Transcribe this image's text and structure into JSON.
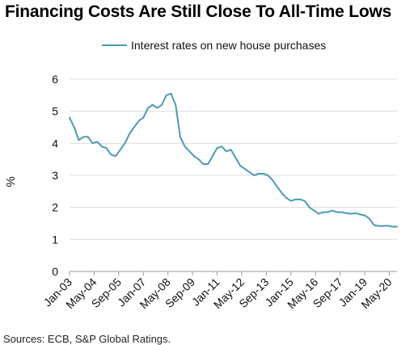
{
  "title": "Financing Costs Are Still Close To All-Time Lows",
  "source": "Sources: ECB, S&P Global Ratings.",
  "chart_data": {
    "type": "line",
    "title": "Financing Costs Are Still Close To All-Time Lows",
    "xlabel": "",
    "ylabel": "%",
    "ylim": [
      0,
      6
    ],
    "yticks": [
      0,
      1,
      2,
      3,
      4,
      5,
      6
    ],
    "xlim": [
      "2003-01",
      "2020-10"
    ],
    "xticks": [
      "Jan-03",
      "May-04",
      "Sep-05",
      "Jan-07",
      "May-08",
      "Sep-09",
      "Jan-11",
      "May-12",
      "Sep-13",
      "Jan-15",
      "May-16",
      "Sep-17",
      "Jan-19",
      "May-20"
    ],
    "grid": true,
    "legend": "top-center",
    "series": [
      {
        "name": "Interest rates on new house purchases",
        "color": "#4a9bb5",
        "points": [
          [
            "2003-01",
            4.8
          ],
          [
            "2003-04",
            4.5
          ],
          [
            "2003-07",
            4.1
          ],
          [
            "2003-10",
            4.2
          ],
          [
            "2004-01",
            4.2
          ],
          [
            "2004-04",
            4.0
          ],
          [
            "2004-07",
            4.05
          ],
          [
            "2004-10",
            3.9
          ],
          [
            "2005-01",
            3.85
          ],
          [
            "2005-04",
            3.65
          ],
          [
            "2005-07",
            3.6
          ],
          [
            "2005-10",
            3.8
          ],
          [
            "2006-01",
            4.0
          ],
          [
            "2006-04",
            4.3
          ],
          [
            "2006-07",
            4.5
          ],
          [
            "2006-10",
            4.7
          ],
          [
            "2007-01",
            4.8
          ],
          [
            "2007-04",
            5.1
          ],
          [
            "2007-07",
            5.2
          ],
          [
            "2007-10",
            5.1
          ],
          [
            "2008-01",
            5.2
          ],
          [
            "2008-04",
            5.5
          ],
          [
            "2008-07",
            5.55
          ],
          [
            "2008-10",
            5.2
          ],
          [
            "2009-01",
            4.2
          ],
          [
            "2009-04",
            3.9
          ],
          [
            "2009-07",
            3.75
          ],
          [
            "2009-10",
            3.6
          ],
          [
            "2010-01",
            3.5
          ],
          [
            "2010-04",
            3.35
          ],
          [
            "2010-07",
            3.35
          ],
          [
            "2010-10",
            3.6
          ],
          [
            "2011-01",
            3.85
          ],
          [
            "2011-04",
            3.9
          ],
          [
            "2011-07",
            3.75
          ],
          [
            "2011-10",
            3.8
          ],
          [
            "2012-01",
            3.55
          ],
          [
            "2012-04",
            3.3
          ],
          [
            "2012-07",
            3.2
          ],
          [
            "2012-10",
            3.1
          ],
          [
            "2013-01",
            3.0
          ],
          [
            "2013-04",
            3.05
          ],
          [
            "2013-07",
            3.05
          ],
          [
            "2013-10",
            3.0
          ],
          [
            "2014-01",
            2.85
          ],
          [
            "2014-04",
            2.65
          ],
          [
            "2014-07",
            2.45
          ],
          [
            "2014-10",
            2.3
          ],
          [
            "2015-01",
            2.2
          ],
          [
            "2015-04",
            2.25
          ],
          [
            "2015-07",
            2.25
          ],
          [
            "2015-10",
            2.2
          ],
          [
            "2016-01",
            2.0
          ],
          [
            "2016-04",
            1.9
          ],
          [
            "2016-07",
            1.8
          ],
          [
            "2016-10",
            1.85
          ],
          [
            "2017-01",
            1.85
          ],
          [
            "2017-04",
            1.9
          ],
          [
            "2017-07",
            1.85
          ],
          [
            "2017-10",
            1.85
          ],
          [
            "2018-01",
            1.82
          ],
          [
            "2018-04",
            1.8
          ],
          [
            "2018-07",
            1.82
          ],
          [
            "2018-10",
            1.78
          ],
          [
            "2019-01",
            1.75
          ],
          [
            "2019-04",
            1.65
          ],
          [
            "2019-07",
            1.45
          ],
          [
            "2019-10",
            1.42
          ],
          [
            "2020-01",
            1.42
          ],
          [
            "2020-04",
            1.43
          ],
          [
            "2020-07",
            1.4
          ],
          [
            "2020-10",
            1.4
          ]
        ]
      }
    ]
  }
}
